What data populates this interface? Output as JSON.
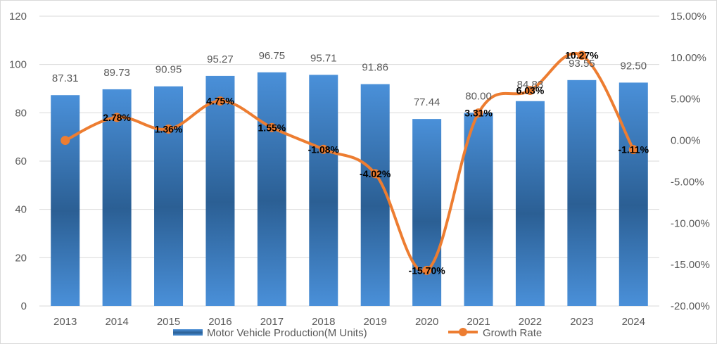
{
  "chart_data": {
    "type": "bar",
    "title": "",
    "categories": [
      "2013",
      "2014",
      "2015",
      "2016",
      "2017",
      "2018",
      "2019",
      "2020",
      "2021",
      "2022",
      "2023",
      "2024"
    ],
    "series": [
      {
        "name": "Motor Vehicle Production(M Units)",
        "type": "bar",
        "axis": "left",
        "values": [
          87.31,
          89.73,
          90.95,
          95.27,
          96.75,
          95.71,
          91.86,
          77.44,
          80.0,
          84.83,
          93.55,
          92.5
        ],
        "labels": [
          "87.31",
          "89.73",
          "90.95",
          "95.27",
          "96.75",
          "95.71",
          "91.86",
          "77.44",
          "80.00",
          "84.83",
          "93.55",
          "92.50"
        ],
        "color": "#3d80c9"
      },
      {
        "name": "Growth Rate",
        "type": "line",
        "axis": "right",
        "values": [
          0,
          2.78,
          1.36,
          4.75,
          1.55,
          -1.08,
          -4.02,
          -15.7,
          3.31,
          6.03,
          10.27,
          -1.11
        ],
        "labels": [
          "",
          "2.78%",
          "1.36%",
          "4.75%",
          "1.55%",
          "-1.08%",
          "-4.02%",
          "-15.70%",
          "3.31%",
          "6.03%",
          "10.27%",
          "-1.11%"
        ],
        "color": "#ed7d31"
      }
    ],
    "left_axis": {
      "min": 0,
      "max": 120,
      "ticks": [
        "0",
        "20",
        "40",
        "60",
        "80",
        "100",
        "120"
      ]
    },
    "right_axis": {
      "min": -20,
      "max": 15,
      "ticks": [
        "-20.00%",
        "-15.00%",
        "-10.00%",
        "-5.00%",
        "0.00%",
        "5.00%",
        "10.00%",
        "15.00%"
      ]
    },
    "grid": "horizontal",
    "legend_position": "bottom",
    "legend": [
      "Motor Vehicle Production(M Units)",
      "Growth Rate"
    ]
  }
}
